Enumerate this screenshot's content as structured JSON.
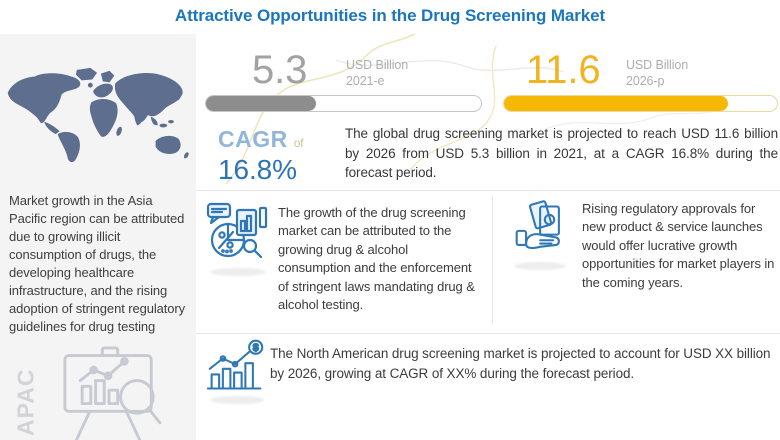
{
  "header": {
    "title": "Attractive Opportunities in the Drug Screening Market"
  },
  "sidebar": {
    "region_text": "Market growth in the Asia Pacific region can be attributed due to growing illicit consumption of drugs, the developing healthcare infrastructure, and the rising adoption of stringent regulatory guidelines for drug testing",
    "region_label": "APAC",
    "map_icon": "world-map",
    "illustration_icon": "presentation-board-magnifier"
  },
  "stats": {
    "current": {
      "value": "5.3",
      "unit": "USD Billion",
      "year": "2021-e",
      "progress_pct": 40,
      "bar_color": "#8d8d8d"
    },
    "projected": {
      "value": "11.6",
      "unit": "USD Billion",
      "year": "2026-p",
      "progress_pct": 82,
      "bar_color": "#f6b804"
    }
  },
  "cagr": {
    "label": "CAGR",
    "connector": "of",
    "value": "16.8%"
  },
  "summary": "The global drug screening market is projected to reach USD 11.6 billion by 2026 from USD 5.3 billion in 2021, at a CAGR 16.8% during the forecast period.",
  "cards": [
    {
      "icon": "market-analysis-icon",
      "text": "The growth of the drug screening market can be attributed to the growing drug & alcohol consumption and the enforcement of stringent laws mandating drug & alcohol testing."
    },
    {
      "icon": "money-in-hand-icon",
      "text": "Rising regulatory approvals for new product & service launches would offer lucrative growth opportunities for market players in the coming years."
    }
  ],
  "bottom_note": {
    "icon": "growth-chart-dollar-icon",
    "text": "The North American drug screening market is projected to account for USD XX billion by 2026, growing at CAGR of XX% during the forecast period."
  },
  "colors": {
    "title_blue": "#1b76bd",
    "accent_blue": "#2d74b5",
    "light_blue": "#90b6da",
    "gold": "#f6b804",
    "gray_bar": "#8d8d8d",
    "map_slate": "#5d6e8f",
    "panel_bg": "#f4f4f5"
  },
  "chart_data": {
    "type": "bar",
    "title": "Attractive Opportunities in the Drug Screening Market",
    "categories": [
      "2021-e",
      "2026-p"
    ],
    "values": [
      5.3,
      11.6
    ],
    "ylabel": "USD Billion",
    "annotations": [
      "CAGR of 16.8%",
      "North America: USD XX billion by 2026 at CAGR XX%"
    ],
    "bar_colors": [
      "#8d8d8d",
      "#f6b804"
    ],
    "progress_fill_pct": [
      40,
      82
    ]
  }
}
